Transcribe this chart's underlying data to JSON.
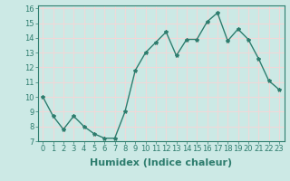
{
  "x": [
    0,
    1,
    2,
    3,
    4,
    5,
    6,
    7,
    8,
    9,
    10,
    11,
    12,
    13,
    14,
    15,
    16,
    17,
    18,
    19,
    20,
    21,
    22,
    23
  ],
  "y": [
    10.0,
    8.7,
    7.8,
    8.7,
    8.0,
    7.5,
    7.2,
    7.2,
    9.0,
    11.8,
    13.0,
    13.7,
    14.4,
    12.8,
    13.9,
    13.9,
    15.1,
    15.7,
    13.8,
    14.6,
    13.9,
    12.6,
    11.1,
    10.5
  ],
  "line_color": "#2e7d6e",
  "marker": "*",
  "marker_size": 3,
  "bg_color": "#cce9e5",
  "grid_color": "#f0d8d8",
  "xlabel": "Humidex (Indice chaleur)",
  "xlim": [
    -0.5,
    23.5
  ],
  "ylim": [
    7.0,
    16.2
  ],
  "yticks": [
    7,
    8,
    9,
    10,
    11,
    12,
    13,
    14,
    15,
    16
  ],
  "xticks": [
    0,
    1,
    2,
    3,
    4,
    5,
    6,
    7,
    8,
    9,
    10,
    11,
    12,
    13,
    14,
    15,
    16,
    17,
    18,
    19,
    20,
    21,
    22,
    23
  ],
  "tick_labelsize": 6,
  "xlabel_fontsize": 8,
  "line_width": 1.0
}
